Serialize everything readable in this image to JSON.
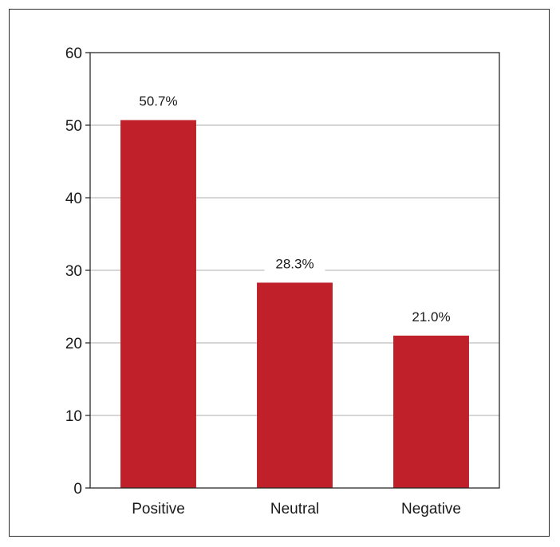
{
  "chart_data": {
    "type": "bar",
    "categories": [
      "Positive",
      "Neutral",
      "Negative"
    ],
    "values": [
      50.7,
      28.3,
      21.0
    ],
    "data_labels": [
      "50.7%",
      "28.3%",
      "21.0%"
    ],
    "title": "",
    "xlabel": "",
    "ylabel": "",
    "ylim": [
      0,
      60
    ],
    "yticks": [
      0,
      10,
      20,
      30,
      40,
      50,
      60
    ],
    "grid": true,
    "bar_color": "#c0202a",
    "grid_color": "#c8c8c8"
  }
}
